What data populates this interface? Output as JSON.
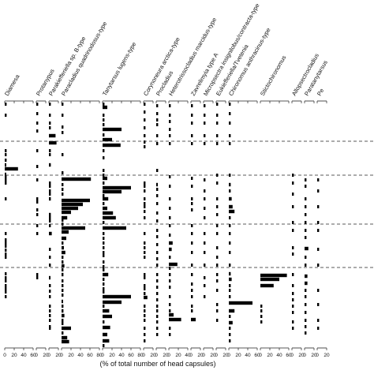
{
  "chart_data": {
    "type": "bar",
    "orientation": "horizontal",
    "xlabel": "(% of total number of head capsules)",
    "ylabel": "",
    "grid": false,
    "legend": "none",
    "zone_dividers": "dashed",
    "taxa": [
      {
        "name": "Diamesa",
        "max": 60,
        "ticks": [
          0,
          20,
          40,
          60
        ],
        "bars": [
          [
            213,
            2
          ],
          [
            218,
            28
          ],
          [
            225,
            1
          ]
        ],
        "dots": [
          136,
          150,
          195,
          200,
          207,
          228,
          232,
          236,
          256,
          300,
          308,
          312,
          316,
          321,
          326,
          330,
          351,
          356,
          360,
          366,
          370,
          374,
          380
        ]
      },
      {
        "name": "Protanypus",
        "max": 20,
        "ticks": [
          0,
          20
        ],
        "bars": [],
        "dots": [
          136,
          148,
          160,
          170,
          195,
          215,
          232,
          256,
          260,
          270,
          276,
          290,
          300,
          352,
          356
        ]
      },
      {
        "name": "Parakiefferiella sp. B-type",
        "max": 20,
        "ticks": [
          0,
          20
        ],
        "bars": [
          [
            176,
            14
          ],
          [
            185,
            16
          ],
          [
            213,
            4
          ],
          [
            256,
            4
          ],
          [
            276,
            4
          ],
          [
            300,
            6
          ],
          [
            356,
            2
          ]
        ],
        "dots": [
          136,
          150,
          160,
          166,
          195,
          200,
          236,
          240,
          246,
          250,
          280,
          284,
          290,
          320,
          330,
          340,
          366,
          373,
          380,
          392,
          398,
          404,
          410,
          418,
          420
        ]
      },
      {
        "name": "Paracladius quadrinodosus-type",
        "max": 80,
        "ticks": [
          0,
          20,
          40,
          60,
          80
        ],
        "bars": [
          [
            231,
            62
          ],
          [
            258,
            60
          ],
          [
            263,
            45
          ],
          [
            268,
            35
          ],
          [
            273,
            20
          ],
          [
            280,
            12
          ],
          [
            293,
            50
          ],
          [
            298,
            15
          ],
          [
            306,
            10
          ],
          [
            318,
            5
          ],
          [
            324,
            8
          ],
          [
            341,
            6
          ],
          [
            352,
            4
          ],
          [
            386,
            2
          ],
          [
            398,
            4
          ],
          [
            404,
            6
          ],
          [
            420,
            20
          ],
          [
            432,
            12
          ],
          [
            437,
            16
          ]
        ],
        "dots": [
          136,
          150,
          165,
          172,
          200,
          223,
          238,
          244,
          250,
          283,
          288,
          312,
          330,
          336,
          346,
          360,
          366,
          372,
          378,
          392,
          410,
          414,
          426
        ]
      },
      {
        "name": "Tanytarsus lugens-type",
        "max": 80,
        "ticks": [
          0,
          20,
          40,
          60,
          80
        ],
        "bars": [
          [
            140,
            10
          ],
          [
            168,
            40
          ],
          [
            181,
            20
          ],
          [
            188,
            38
          ],
          [
            230,
            10
          ],
          [
            242,
            60
          ],
          [
            247,
            40
          ],
          [
            256,
            12
          ],
          [
            268,
            10
          ],
          [
            274,
            22
          ],
          [
            280,
            28
          ],
          [
            293,
            50
          ],
          [
            352,
            12
          ],
          [
            380,
            60
          ],
          [
            387,
            40
          ],
          [
            398,
            14
          ],
          [
            405,
            20
          ],
          [
            419,
            16
          ],
          [
            428,
            10
          ],
          [
            436,
            14
          ]
        ],
        "dots": [
          136,
          150,
          156,
          162,
          175,
          195,
          204,
          220,
          226,
          236,
          252,
          262,
          286,
          300,
          306,
          312,
          318,
          324,
          328,
          336,
          342,
          346,
          358,
          364,
          370,
          374,
          392,
          412,
          442
        ]
      },
      {
        "name": "Corynoneura arctica-type",
        "max": 20,
        "ticks": [
          0,
          20
        ],
        "bars": [
          [
            381,
            8
          ]
        ],
        "dots": [
          136,
          146,
          156,
          166,
          176,
          184,
          190,
          236,
          240,
          246,
          256,
          262,
          266,
          272,
          280,
          300,
          312,
          318,
          324,
          330,
          352,
          356,
          366,
          370,
          376,
          392,
          398,
          404,
          410,
          420,
          428,
          436
        ]
      },
      {
        "name": "Procladius",
        "max": 20,
        "ticks": [
          0,
          20
        ],
        "bars": [
          [
            238,
            2
          ]
        ],
        "dots": [
          138,
          148,
          156,
          162,
          176,
          186,
          220,
          244,
          252,
          262,
          274,
          284,
          296,
          304,
          314,
          324,
          332,
          340,
          352,
          360,
          368,
          376,
          384,
          392,
          398,
          405,
          412,
          420,
          428
        ]
      },
      {
        "name": "Heterotrissocladius marcidus-type",
        "max": 40,
        "ticks": [
          0,
          20,
          40
        ],
        "bars": [
          [
            312,
            8
          ],
          [
            320,
            6
          ],
          [
            339,
            18
          ],
          [
            403,
            10
          ],
          [
            409,
            26
          ]
        ],
        "dots": [
          138,
          150,
          158,
          168,
          176,
          186,
          228,
          240,
          256,
          268,
          280,
          290,
          302,
          330,
          344,
          352,
          360,
          368,
          380,
          390,
          398,
          420,
          428
        ]
      },
      {
        "name": "Zavrelimyia type A",
        "max": 20,
        "ticks": [
          0,
          20
        ],
        "bars": [
          [
            409,
            10
          ]
        ],
        "dots": [
          138,
          150,
          160,
          176,
          186,
          230,
          240,
          256,
          262,
          270,
          290,
          300,
          312,
          324,
          340,
          352,
          364,
          372,
          380,
          392,
          398
        ]
      },
      {
        "name": "Micropsectra insignilobus/contracta-type",
        "max": 20,
        "ticks": [
          0,
          20
        ],
        "bars": [],
        "dots": [
          138,
          150,
          160,
          176,
          186,
          232,
          246,
          256,
          268,
          280,
          300,
          312,
          324,
          340,
          356,
          366,
          380
        ]
      },
      {
        "name": "Eukiefferiella/Tvetenia",
        "max": 20,
        "ticks": [
          0,
          20
        ],
        "bars": [],
        "dots": [
          136,
          150,
          160,
          176,
          186,
          226,
          236,
          256,
          266,
          276,
          290,
          300,
          318,
          330,
          340,
          352,
          360,
          372,
          390,
          398,
          410
        ]
      },
      {
        "name": "Chironomus anthracinus-type",
        "max": 60,
        "ticks": [
          0,
          20,
          40,
          60
        ],
        "bars": [
          [
            238,
            4
          ],
          [
            256,
            6
          ],
          [
            266,
            8
          ],
          [
            272,
            12
          ],
          [
            351,
            4
          ],
          [
            358,
            6
          ],
          [
            388,
            50
          ],
          [
            398,
            12
          ],
          [
            413,
            8
          ]
        ],
        "dots": [
          136,
          148,
          160,
          176,
          186,
          226,
          246,
          280,
          290,
          300,
          312,
          324,
          340,
          366,
          372,
          380,
          405,
          420,
          428,
          436
        ]
      },
      {
        "name": "Stictochironomus",
        "max": 60,
        "ticks": [
          0,
          20,
          40,
          60
        ],
        "bars": [
          [
            353,
            56
          ],
          [
            358,
            40
          ],
          [
            366,
            28
          ]
        ],
        "dots": [
          392,
          398,
          405,
          412
        ]
      },
      {
        "name": "Allopsectrocladius",
        "max": 20,
        "ticks": [
          0,
          20
        ],
        "bars": [],
        "dots": [
          226,
          236,
          250,
          266,
          286,
          296,
          318,
          326,
          352,
          366,
          376,
          384,
          392,
          400,
          412,
          420
        ]
      },
      {
        "name": "Paratanytarsus",
        "max": 20,
        "ticks": [
          0,
          20
        ],
        "bars": [
          [
            319,
            8
          ],
          [
            354,
            6
          ],
          [
            363,
            6
          ]
        ],
        "dots": [
          232,
          240,
          256,
          266,
          276,
          286,
          296,
          305,
          330,
          340,
          372,
          380,
          390,
          400,
          410,
          418,
          426
        ]
      },
      {
        "name": "Pe",
        "max": 20,
        "ticks": [
          0,
          20
        ],
        "bars": [],
        "dots": [
          232,
          246,
          266,
          286,
          296,
          320,
          340,
          372,
          390,
          410,
          420
        ]
      }
    ]
  }
}
